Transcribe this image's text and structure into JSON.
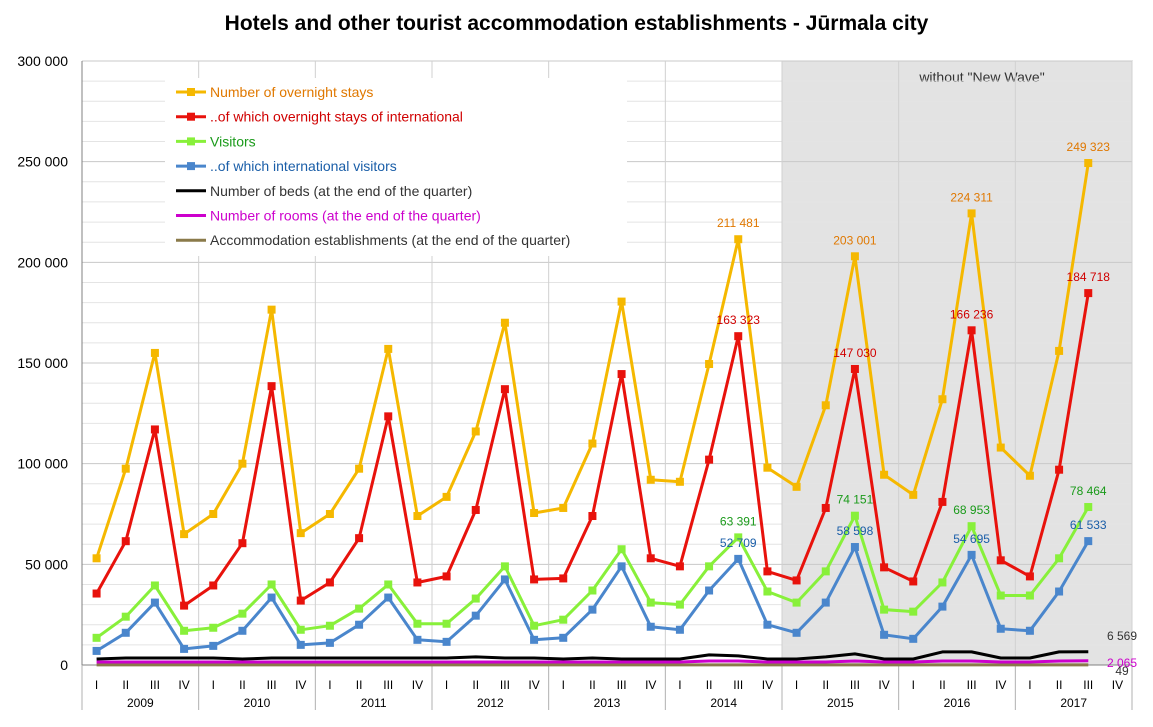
{
  "chart_data": {
    "type": "line",
    "title": "Hotels and other tourist accommodation establishments - Jūrmala city",
    "ylim": [
      0,
      300000
    ],
    "yticks": [
      "0",
      "50 000",
      "100 000",
      "150 000",
      "200 000",
      "250 000",
      "300 000"
    ],
    "ytick_values": [
      0,
      50000,
      100000,
      150000,
      200000,
      250000,
      300000
    ],
    "grid": true,
    "legend_position": "top-left",
    "shaded_region": {
      "label": "without \"New Wave\"",
      "from_index": 24,
      "to_index": 35
    },
    "quarters": [
      "I",
      "II",
      "III",
      "IV",
      "I",
      "II",
      "III",
      "IV",
      "I",
      "II",
      "III",
      "IV",
      "I",
      "II",
      "III",
      "IV",
      "I",
      "II",
      "III",
      "IV",
      "I",
      "II",
      "III",
      "IV",
      "I",
      "II",
      "III",
      "IV",
      "I",
      "II",
      "III",
      "IV",
      "I",
      "II",
      "III",
      "IV"
    ],
    "years": [
      "2009",
      "2010",
      "2011",
      "2012",
      "2013",
      "2014",
      "2015",
      "2016",
      "2017"
    ],
    "series": [
      {
        "name": "Number of overnight stays",
        "color": "#f5b800",
        "label_color": "#e07800",
        "marker": true,
        "values": [
          53000,
          97500,
          155000,
          65000,
          75000,
          100000,
          176500,
          65500,
          75000,
          97500,
          157000,
          74000,
          83500,
          116000,
          170000,
          75500,
          78000,
          110000,
          180500,
          92000,
          91000,
          149500,
          211481,
          98000,
          88500,
          129000,
          203001,
          94500,
          84500,
          132000,
          224311,
          108000,
          94000,
          156000,
          249323,
          null
        ],
        "labels": [
          {
            "i": 22,
            "text": "211 481"
          },
          {
            "i": 26,
            "text": "203 001"
          },
          {
            "i": 30,
            "text": "224 311"
          },
          {
            "i": 34,
            "text": "249 323"
          }
        ]
      },
      {
        "name": "..of which overnight stays of international",
        "color": "#e8120c",
        "label_color": "#d00000",
        "marker": true,
        "values": [
          35500,
          61500,
          117000,
          29500,
          39500,
          60500,
          138500,
          32000,
          41000,
          63000,
          123500,
          41000,
          44000,
          77000,
          137000,
          42500,
          43000,
          74000,
          144500,
          53000,
          49000,
          102000,
          163323,
          46500,
          42000,
          78000,
          147030,
          48500,
          41500,
          81000,
          166236,
          52000,
          44000,
          97000,
          184718,
          null
        ],
        "labels": [
          {
            "i": 22,
            "text": "163 323"
          },
          {
            "i": 26,
            "text": "147 030"
          },
          {
            "i": 30,
            "text": "166 236"
          },
          {
            "i": 34,
            "text": "184 718"
          }
        ]
      },
      {
        "name": "Visitors",
        "color": "#88f03a",
        "label_color": "#1a9a1a",
        "marker": true,
        "values": [
          13500,
          24000,
          39500,
          17000,
          18500,
          25500,
          40000,
          17500,
          19500,
          28000,
          40000,
          20500,
          20500,
          33000,
          49000,
          19500,
          22500,
          37000,
          57500,
          31000,
          30000,
          49000,
          63391,
          36500,
          31000,
          46500,
          74151,
          27500,
          26500,
          41000,
          68953,
          34500,
          34500,
          53000,
          78464,
          null
        ],
        "labels": [
          {
            "i": 22,
            "text": "63 391"
          },
          {
            "i": 26,
            "text": "74 151"
          },
          {
            "i": 30,
            "text": "68 953"
          },
          {
            "i": 34,
            "text": "78 464"
          }
        ]
      },
      {
        "name": "..of which international visitors",
        "color": "#4a86cc",
        "label_color": "#1a5ea8",
        "marker": true,
        "values": [
          7000,
          16000,
          31000,
          8000,
          9500,
          17000,
          33500,
          10000,
          11000,
          20000,
          33500,
          12500,
          11500,
          24500,
          42500,
          12500,
          13500,
          27500,
          49000,
          19000,
          17500,
          37000,
          52709,
          20000,
          16000,
          31000,
          58598,
          15000,
          13000,
          29000,
          54695,
          18000,
          17000,
          36500,
          61533,
          null
        ],
        "labels": [
          {
            "i": 22,
            "text": "52 709"
          },
          {
            "i": 26,
            "text": "58 598"
          },
          {
            "i": 30,
            "text": "54 695"
          },
          {
            "i": 34,
            "text": "61 533"
          }
        ]
      },
      {
        "name": "Number of beds (at the end of the quarter)",
        "color": "#000000",
        "label_color": "#333333",
        "marker": false,
        "values": [
          3000,
          3500,
          3500,
          3500,
          3500,
          3000,
          3500,
          3500,
          3500,
          3500,
          3500,
          3500,
          3500,
          4000,
          3500,
          3500,
          3000,
          3500,
          3000,
          3000,
          3000,
          5000,
          4500,
          3000,
          3000,
          4000,
          5500,
          3000,
          3000,
          6500,
          6500,
          3500,
          3500,
          6500,
          6569,
          null
        ],
        "labels": [
          {
            "i": 34,
            "text": "6 569"
          }
        ]
      },
      {
        "name": "Number of rooms (at the end of the quarter)",
        "color": "#cc00cc",
        "label_color": "#cc00cc",
        "marker": false,
        "values": [
          1500,
          1500,
          1500,
          1500,
          1500,
          1500,
          1500,
          1500,
          1500,
          1500,
          1500,
          1500,
          1500,
          1500,
          1500,
          1500,
          1500,
          1500,
          1500,
          1500,
          1500,
          2000,
          2000,
          1500,
          1500,
          1500,
          2000,
          1500,
          1500,
          2000,
          2000,
          1500,
          1500,
          2000,
          2065,
          null
        ],
        "labels": [
          {
            "i": 34,
            "text": "2 065"
          }
        ]
      },
      {
        "name": "Accommodation establishments (at the end of the quarter)",
        "color": "#8a7a4a",
        "label_color": "#333333",
        "marker": false,
        "values": [
          49,
          49,
          49,
          49,
          49,
          49,
          49,
          49,
          49,
          49,
          49,
          49,
          49,
          49,
          49,
          49,
          49,
          49,
          49,
          49,
          49,
          49,
          49,
          49,
          49,
          49,
          49,
          49,
          49,
          49,
          49,
          49,
          49,
          49,
          49,
          null
        ],
        "labels": [
          {
            "i": 34,
            "text": "49"
          }
        ]
      }
    ]
  }
}
